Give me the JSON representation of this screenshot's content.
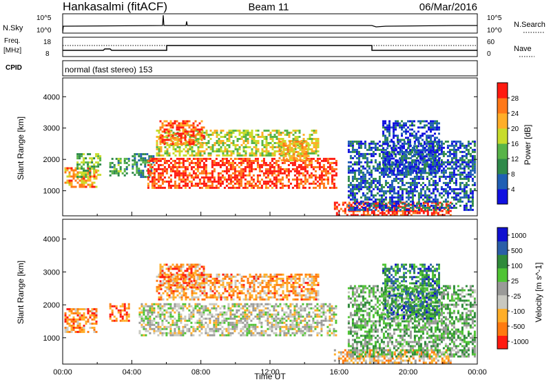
{
  "header": {
    "station": "Hankasalmi (fitACF)",
    "beam": "Beam 11",
    "date": "06/Mar/2016"
  },
  "strips": {
    "nsky_label": "N.Sky",
    "nsky_ticks": [
      "10^5",
      "10^0"
    ],
    "nsearch_label": "N.Search",
    "nsearch_ticks": [
      "10^5",
      "10^0"
    ],
    "freq_label_1": "Freq.",
    "freq_label_2": "[MHz]",
    "freq_ticks": [
      "18",
      "8"
    ],
    "nave_label": "Nave",
    "nave_ticks": [
      "60",
      "0"
    ],
    "cpid_label": "CPID",
    "cpid_text": "normal (fast stereo) 153"
  },
  "colors": {
    "velocity_scale": [
      "#ff1a10",
      "#ff7a10",
      "#ffae28",
      "#c8c8c0",
      "#9a9a98",
      "#4fc434",
      "#2f8a3a",
      "#2a5ea8",
      "#1010d0"
    ],
    "power_scale": [
      "#1010e0",
      "#1f5fb4",
      "#2f8a4a",
      "#58b448",
      "#c8dc2c",
      "#ffae28",
      "#ff7818",
      "#ff1a10"
    ]
  },
  "chart_data": [
    {
      "type": "heatmap",
      "panel": "power",
      "ylabel": "Slant Range [km]",
      "yticks": [
        1000,
        2000,
        3000,
        4000
      ],
      "ylim": [
        200,
        4600
      ],
      "xlim": [
        0,
        24
      ],
      "colorbar_label": "Power [dB]",
      "colorbar_ticks": [
        "4",
        "8",
        "12",
        "16",
        "20",
        "24",
        "28"
      ],
      "regions": [
        {
          "x0": 0.1,
          "x1": 1.9,
          "y0": 1150,
          "y1": 1750,
          "level": 0.75
        },
        {
          "x0": 0.8,
          "x1": 2.2,
          "y0": 1450,
          "y1": 2200,
          "level": 0.45
        },
        {
          "x0": 2.7,
          "x1": 3.8,
          "y0": 1500,
          "y1": 2050,
          "level": 0.4
        },
        {
          "x0": 4.0,
          "x1": 5.2,
          "y0": 1450,
          "y1": 2200,
          "level": 0.3
        },
        {
          "x0": 4.9,
          "x1": 15.8,
          "y0": 1100,
          "y1": 2050,
          "level": 0.9
        },
        {
          "x0": 5.4,
          "x1": 14.8,
          "y0": 2150,
          "y1": 2950,
          "level": 0.55
        },
        {
          "x0": 5.6,
          "x1": 8.2,
          "y0": 2500,
          "y1": 3250,
          "level": 0.85
        },
        {
          "x0": 12.5,
          "x1": 14.2,
          "y0": 2000,
          "y1": 2600,
          "level": 0.7
        },
        {
          "x0": 15.7,
          "x1": 22.5,
          "y0": 220,
          "y1": 650,
          "level": 0.95
        },
        {
          "x0": 16.5,
          "x1": 23.8,
          "y0": 400,
          "y1": 2600,
          "level": 0.2
        },
        {
          "x0": 18.5,
          "x1": 21.8,
          "y0": 1600,
          "y1": 3250,
          "level": 0.15
        }
      ]
    },
    {
      "type": "heatmap",
      "panel": "velocity",
      "ylabel": "Slant Range [km]",
      "yticks": [
        1000,
        2000,
        3000,
        4000
      ],
      "ylim": [
        200,
        4600
      ],
      "xlim": [
        0,
        24
      ],
      "xticks": [
        "00:00",
        "04:00",
        "08:00",
        "12:00",
        "16:00",
        "20:00",
        "00:00"
      ],
      "xlabel": "Time UT",
      "colorbar_label": "Velocity [m s^-1]",
      "colorbar_ticks": [
        "1000",
        "500",
        "100",
        "25",
        "-25",
        "-100",
        "-500",
        "-1000"
      ],
      "regions": [
        {
          "x0": 0.1,
          "x1": 1.9,
          "y0": 1150,
          "y1": 1900,
          "level": 0.2
        },
        {
          "x0": 2.7,
          "x1": 3.8,
          "y0": 1500,
          "y1": 2050,
          "level": 0.15
        },
        {
          "x0": 4.4,
          "x1": 15.8,
          "y0": 1100,
          "y1": 2050,
          "level": 0.45
        },
        {
          "x0": 5.4,
          "x1": 14.8,
          "y0": 2150,
          "y1": 2950,
          "level": 0.25
        },
        {
          "x0": 5.6,
          "x1": 8.2,
          "y0": 2500,
          "y1": 3250,
          "level": 0.2
        },
        {
          "x0": 15.7,
          "x1": 22.5,
          "y0": 220,
          "y1": 650,
          "level": 0.3
        },
        {
          "x0": 16.5,
          "x1": 23.8,
          "y0": 400,
          "y1": 2600,
          "level": 0.6
        },
        {
          "x0": 18.5,
          "x1": 21.8,
          "y0": 1600,
          "y1": 3250,
          "level": 0.75
        }
      ]
    }
  ]
}
